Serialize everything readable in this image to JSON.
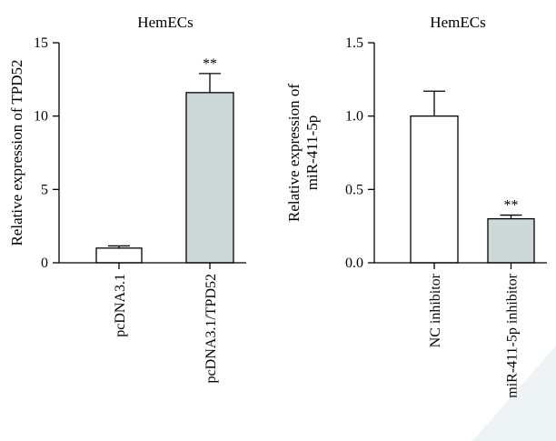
{
  "chart_data": [
    {
      "type": "bar",
      "title": "HemECs",
      "ylabel": "Relative expression of TPD52",
      "ylim": [
        0,
        15
      ],
      "yticks": [
        "0",
        "5",
        "10",
        "15"
      ],
      "categories": [
        "pcDNA3.1",
        "pcDNA3.1/TPD52"
      ],
      "values": [
        1.0,
        11.6
      ],
      "errors": [
        0.15,
        1.3
      ],
      "significance": [
        "",
        "**"
      ],
      "colors": [
        "#ffffff",
        "#cdd9d9"
      ]
    },
    {
      "type": "bar",
      "title": "HemECs",
      "ylabel": [
        "Relative expression of",
        "miR-411-5p"
      ],
      "ylim": [
        0,
        1.5
      ],
      "yticks": [
        "0.0",
        "0.5",
        "1.0",
        "1.5"
      ],
      "categories": [
        "NC inhibitor",
        "miR-411-5p inhibitor"
      ],
      "values": [
        1.0,
        0.3
      ],
      "errors": [
        0.17,
        0.025
      ],
      "significance": [
        "",
        "**"
      ],
      "colors": [
        "#ffffff",
        "#cdd9d9"
      ]
    }
  ]
}
